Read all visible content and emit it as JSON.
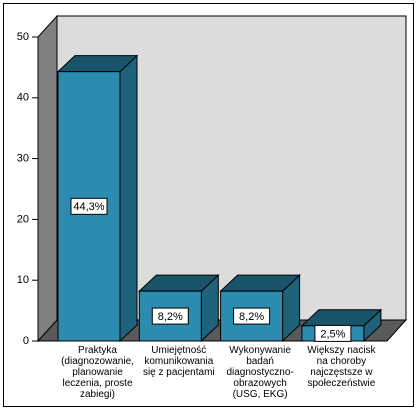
{
  "chart_data": {
    "type": "bar3d",
    "categories": [
      "Praktyka (diagnozowanie, planowanie leczenia, proste zabiegi)",
      "Umiejętność komunikowania się z pacjentami",
      "Wykonywanie badań diagnostyczno-obrazowych (USG, EKG)",
      "Większy nacisk na choroby najczęstsze w społeczeństwie"
    ],
    "values": [
      44.3,
      8.2,
      8.2,
      2.5
    ],
    "value_labels": [
      "44,3%",
      "8,2%",
      "8,2%",
      "2,5%"
    ],
    "color": "#2b8cb0",
    "ylim": [
      0,
      50
    ],
    "yticks": [
      0,
      10,
      20,
      30,
      40,
      50
    ],
    "grid": false
  }
}
